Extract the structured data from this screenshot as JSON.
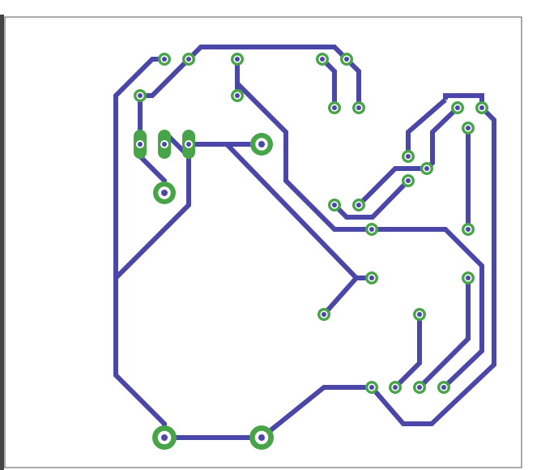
{
  "colors": {
    "background": "#ffffff",
    "board_outline": "#555555",
    "trace": "#4a47a8",
    "pad": "#48a448",
    "hole": "#ffffff"
  }
}
